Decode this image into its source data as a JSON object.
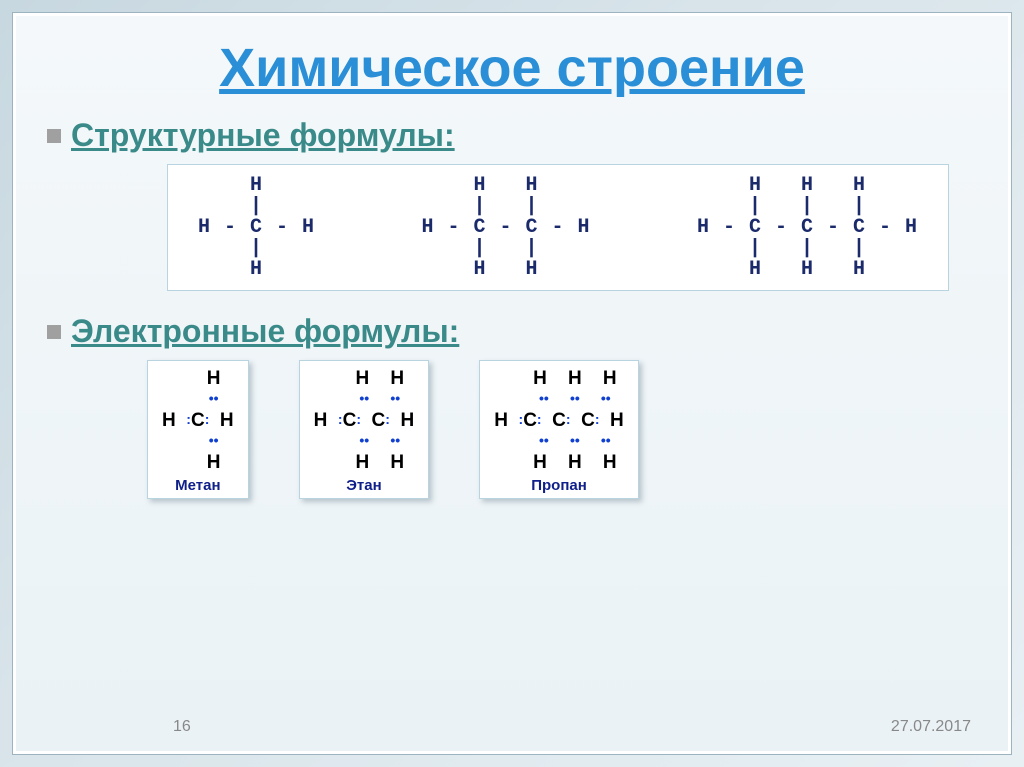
{
  "title": {
    "text": "Химическое строение",
    "color": "#2a8fd6",
    "fontsize": 54
  },
  "subtitle1": {
    "text": "Структурные формулы:",
    "color": "#3a8a8a",
    "bullet_color": "#a0a0a0"
  },
  "subtitle2": {
    "text": "Электронные формулы:",
    "color": "#3a8a8a",
    "bullet_color": "#a0a0a0"
  },
  "structural": {
    "box_border": "#b8d4e0",
    "text_color": "#1a2a6a",
    "molecules": [
      {
        "name": "methane",
        "lines": [
          "    H    ",
          "    |    ",
          "H - C - H",
          "    |    ",
          "    H    "
        ]
      },
      {
        "name": "ethane",
        "lines": [
          "    H   H    ",
          "    |   |    ",
          "H - C - C - H",
          "    |   |    ",
          "    H   H    "
        ]
      },
      {
        "name": "propane",
        "lines": [
          "    H   H   H    ",
          "    |   |   |    ",
          "H - C - C - C - H",
          "    |   |   |    ",
          "    H   H   H    "
        ]
      }
    ]
  },
  "electronic": {
    "box_border": "#b8d4e0",
    "text_color": "#000000",
    "dot_color": "#1040d0",
    "molecules": [
      {
        "name": "methane",
        "caption": "Метан",
        "tokens": [
          [
            "sp",
            "sp",
            "sp",
            "H"
          ],
          [
            "sp",
            "sp",
            "sp",
            "dd"
          ],
          [
            "H",
            "sp",
            "dc",
            "C",
            "dc",
            "sp",
            "H"
          ],
          [
            "sp",
            "sp",
            "sp",
            "dd"
          ],
          [
            "sp",
            "sp",
            "sp",
            "H"
          ]
        ]
      },
      {
        "name": "ethane",
        "caption": "Этан",
        "tokens": [
          [
            "sp",
            "sp",
            "sp",
            "H",
            "sp",
            "sp",
            "H"
          ],
          [
            "sp",
            "sp",
            "sp",
            "dd",
            "sp",
            "sp",
            "dd"
          ],
          [
            "H",
            "sp",
            "dc",
            "C",
            "dc",
            "sp",
            "C",
            "dc",
            "sp",
            "H"
          ],
          [
            "sp",
            "sp",
            "sp",
            "dd",
            "sp",
            "sp",
            "dd"
          ],
          [
            "sp",
            "sp",
            "sp",
            "H",
            "sp",
            "sp",
            "H"
          ]
        ]
      },
      {
        "name": "propane",
        "caption": "Пропан",
        "tokens": [
          [
            "sp",
            "sp",
            "sp",
            "H",
            "sp",
            "sp",
            "H",
            "sp",
            "sp",
            "H"
          ],
          [
            "sp",
            "sp",
            "sp",
            "dd",
            "sp",
            "sp",
            "dd",
            "sp",
            "sp",
            "dd"
          ],
          [
            "H",
            "sp",
            "dc",
            "C",
            "dc",
            "sp",
            "C",
            "dc",
            "sp",
            "C",
            "dc",
            "sp",
            "H"
          ],
          [
            "sp",
            "sp",
            "sp",
            "dd",
            "sp",
            "sp",
            "dd",
            "sp",
            "sp",
            "dd"
          ],
          [
            "sp",
            "sp",
            "sp",
            "H",
            "sp",
            "sp",
            "H",
            "sp",
            "sp",
            "H"
          ]
        ]
      }
    ]
  },
  "footer": {
    "page": "16",
    "date": "27.07.2017",
    "color": "#888888"
  },
  "background": {
    "gradient_from": "#c8d8e0",
    "gradient_to": "#e8f0f4"
  }
}
